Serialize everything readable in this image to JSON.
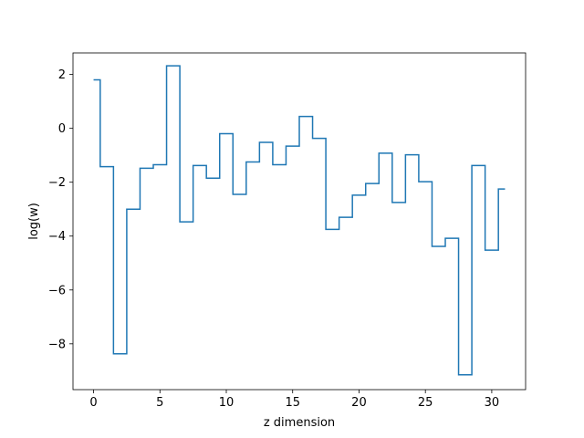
{
  "chart_data": {
    "type": "line",
    "drawstyle": "steps-mid",
    "title": "",
    "xlabel": "z dimension",
    "ylabel": "log(w)",
    "xlim": [
      -1.55,
      32.55
    ],
    "ylim": [
      -9.7,
      2.8
    ],
    "grid": false,
    "legend": "none",
    "xticks": [
      0,
      5,
      10,
      15,
      20,
      25,
      30
    ],
    "xtick_labels": [
      "0",
      "5",
      "10",
      "15",
      "20",
      "25",
      "30"
    ],
    "yticks": [
      -8,
      -6,
      -4,
      -2,
      0,
      2
    ],
    "ytick_labels": [
      "−8",
      "−6",
      "−4",
      "−2",
      "0",
      "2"
    ],
    "series": [
      {
        "color": "#1f77b4",
        "x": [
          0,
          1,
          2,
          3,
          4,
          5,
          6,
          7,
          8,
          9,
          10,
          11,
          12,
          13,
          14,
          15,
          16,
          17,
          18,
          19,
          20,
          21,
          22,
          23,
          24,
          25,
          26,
          27,
          28,
          29,
          30,
          31
        ],
        "values": [
          1.8,
          -1.42,
          -8.37,
          -3.0,
          -1.48,
          -1.35,
          2.32,
          -3.47,
          -1.38,
          -1.85,
          -0.2,
          -2.45,
          -1.25,
          -0.52,
          -1.35,
          -0.66,
          0.44,
          -0.37,
          -3.75,
          -3.3,
          -2.48,
          -2.05,
          -0.92,
          -2.75,
          -0.98,
          -1.98,
          -4.38,
          -4.08,
          -9.15,
          -1.38,
          -4.52,
          -2.25
        ]
      }
    ]
  }
}
